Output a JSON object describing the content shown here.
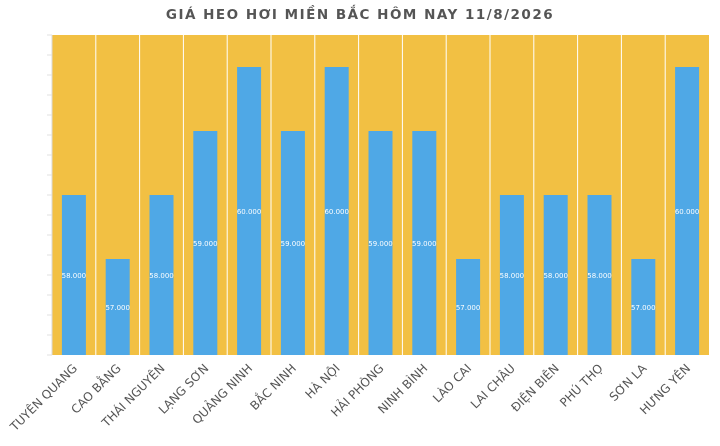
{
  "chart_data": {
    "type": "bar",
    "title": "GIÁ HEO HƠI MIỀN BẮC HÔM NAY 11/8/2026",
    "xlabel": "",
    "ylabel": "",
    "categories": [
      "TUYÊN QUANG",
      "CAO BẰNG",
      "THÁI NGUYÊN",
      "LẠNG SƠN",
      "QUẢNG NINH",
      "BẮC NINH",
      "HÀ NỘI",
      "HẢI PHÒNG",
      "NINH BÌNH",
      "LÀO CAI",
      "LAI CHÂU",
      "ĐIỆN BIÊN",
      "PHÚ THỌ",
      "SƠN LA",
      "HƯNG YÊN"
    ],
    "values": [
      58000,
      57000,
      58000,
      59000,
      60000,
      59000,
      60000,
      59000,
      59000,
      57000,
      58000,
      58000,
      58000,
      57000,
      60000
    ],
    "value_labels": [
      "58.000",
      "57.000",
      "58.000",
      "59.000",
      "60.000",
      "59.000",
      "60.000",
      "59.000",
      "59.000",
      "57.000",
      "58.000",
      "58.000",
      "58.000",
      "57.000",
      "60.000"
    ],
    "ylim": [
      55500,
      60500
    ],
    "grid": false,
    "legend": "none",
    "colors": {
      "plot_background": "#F2C043",
      "bar": "#4FA8E6",
      "separator": "#FFFFFF",
      "title": "#555555",
      "axis_labels": "#555555",
      "value_labels": "#FFFFFF"
    }
  }
}
